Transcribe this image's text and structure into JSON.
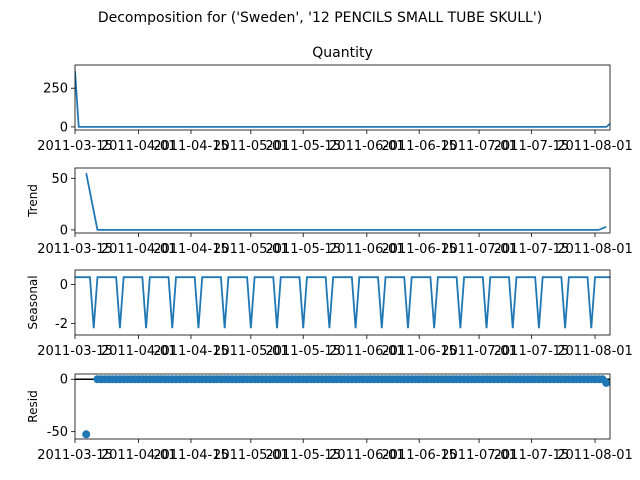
{
  "figure": {
    "suptitle": "Decomposition for ('Sweden', '12 PENCILS SMALL TUBE SKULL')"
  },
  "colors": {
    "series": "#1f77b4",
    "axis": "#000000",
    "background": "#ffffff"
  },
  "chart_data": [
    {
      "type": "line",
      "title": "Quantity",
      "ylabel": "",
      "x_start": "2011-03-15",
      "x_end": "2011-08-05",
      "xlim": [
        "2011-03-15",
        "2011-08-05"
      ],
      "ylim": [
        -20,
        400
      ],
      "x_ticks": [
        "2011-03-15",
        "2011-04-01",
        "2011-04-15",
        "2011-05-01",
        "2011-05-15",
        "2011-06-01",
        "2011-06-15",
        "2011-07-01",
        "2011-07-15",
        "2011-08-01"
      ],
      "y_ticks": [
        0,
        250
      ],
      "series": [
        {
          "x": [
            "2011-03-15",
            "2011-03-16",
            "2011-08-04",
            "2011-08-05"
          ],
          "values": [
            360,
            0,
            0,
            20
          ]
        }
      ],
      "grid": false
    },
    {
      "type": "line",
      "title": "",
      "ylabel": "Trend",
      "xlim": [
        "2011-03-15",
        "2011-08-05"
      ],
      "ylim": [
        -3,
        60
      ],
      "x_ticks": [
        "2011-03-15",
        "2011-04-01",
        "2011-04-15",
        "2011-05-01",
        "2011-05-15",
        "2011-06-01",
        "2011-06-15",
        "2011-07-01",
        "2011-07-15",
        "2011-08-01"
      ],
      "y_ticks": [
        0,
        50
      ],
      "series": [
        {
          "x": [
            "2011-03-18",
            "2011-03-21",
            "2011-08-02",
            "2011-08-04"
          ],
          "values": [
            55,
            0,
            0,
            3
          ]
        }
      ],
      "grid": false
    },
    {
      "type": "line",
      "title": "",
      "ylabel": "Seasonal",
      "xlim": [
        "2011-03-15",
        "2011-08-05"
      ],
      "ylim": [
        -2.6,
        0.75
      ],
      "x_ticks": [
        "2011-03-15",
        "2011-04-01",
        "2011-04-15",
        "2011-05-01",
        "2011-05-15",
        "2011-06-01",
        "2011-06-15",
        "2011-07-01",
        "2011-07-15",
        "2011-08-01"
      ],
      "y_ticks": [
        0,
        -2
      ],
      "period_days": 7,
      "pattern": [
        0.38,
        0.38,
        0.38,
        0.38,
        0.38,
        -2.25,
        0.38
      ],
      "first_date": "2011-03-15",
      "last_date": "2011-08-05",
      "grid": false
    },
    {
      "type": "scatter",
      "title": "",
      "ylabel": "Resid",
      "xlim": [
        "2011-03-15",
        "2011-08-05"
      ],
      "ylim": [
        -57,
        5
      ],
      "x_ticks": [
        "2011-03-15",
        "2011-04-01",
        "2011-04-15",
        "2011-05-01",
        "2011-05-15",
        "2011-06-01",
        "2011-06-15",
        "2011-07-01",
        "2011-07-15",
        "2011-08-01"
      ],
      "y_ticks": [
        0,
        -50
      ],
      "zero_line": true,
      "outliers": [
        {
          "x": "2011-03-18",
          "value": -52.5
        },
        {
          "x": "2011-08-04",
          "value": -3.5
        }
      ],
      "baseline_start": "2011-03-21",
      "baseline_end": "2011-08-03",
      "baseline_value": 0,
      "grid": false
    }
  ]
}
